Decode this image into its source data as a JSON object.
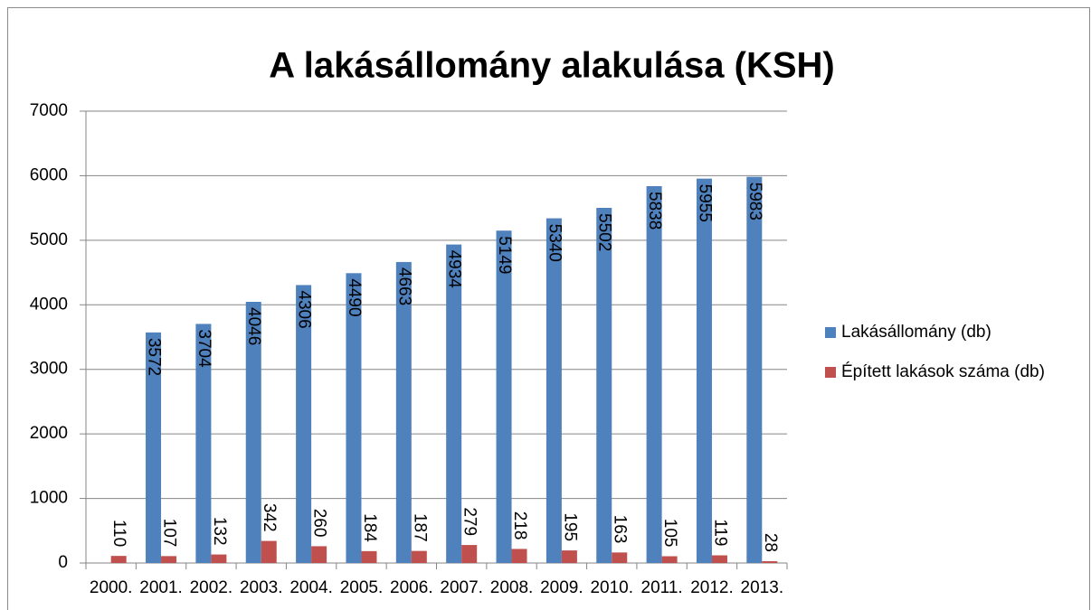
{
  "chart_data": {
    "type": "bar",
    "title": "A lakásállomány alakulása (KSH)",
    "categories": [
      "2000.",
      "2001.",
      "2002.",
      "2003.",
      "2004.",
      "2005.",
      "2006.",
      "2007.",
      "2008.",
      "2009.",
      "2010.",
      "2011.",
      "2012.",
      "2013."
    ],
    "series": [
      {
        "name": "Lakásállomány (db)",
        "color": "#4f81bd",
        "values": [
          null,
          3572,
          3704,
          4046,
          4306,
          4490,
          4663,
          4934,
          5149,
          5340,
          5502,
          5838,
          5955,
          5983
        ]
      },
      {
        "name": "Épített lakások száma (db)",
        "color": "#c0504d",
        "values": [
          110,
          107,
          132,
          342,
          260,
          184,
          187,
          279,
          218,
          195,
          163,
          105,
          119,
          28
        ]
      }
    ],
    "ylim": [
      0,
      7000
    ],
    "yticks": [
      0,
      1000,
      2000,
      3000,
      4000,
      5000,
      6000,
      7000
    ],
    "grid": true,
    "legend": "right"
  }
}
